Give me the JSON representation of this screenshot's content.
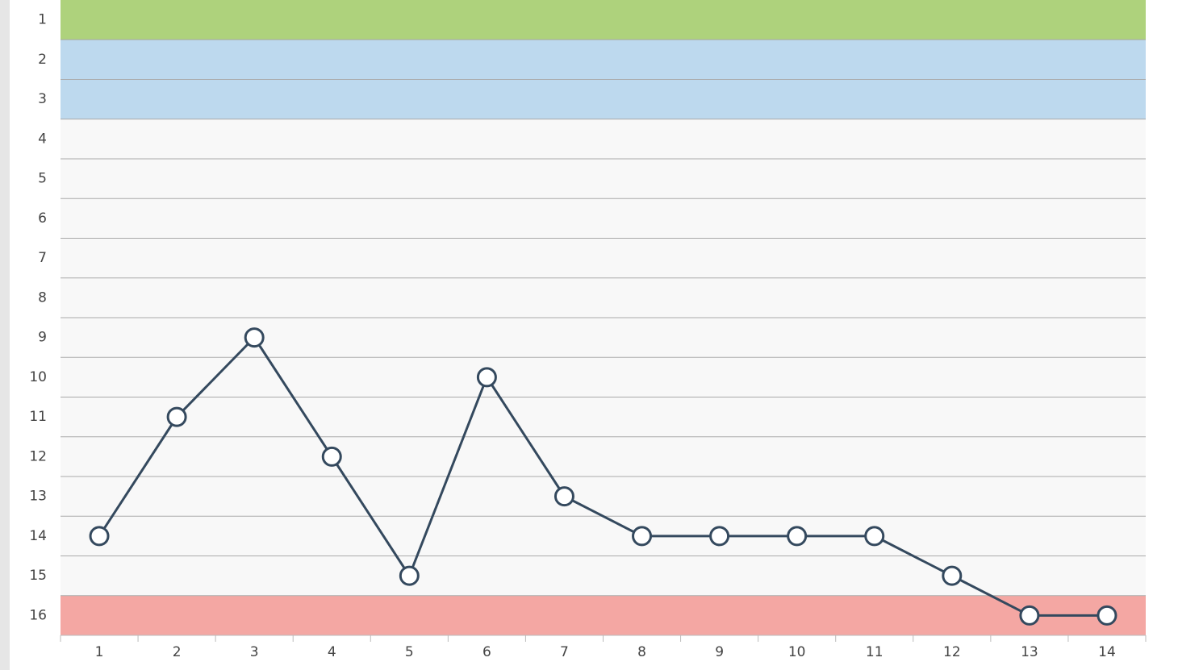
{
  "chart_data": {
    "type": "line",
    "categories": [
      "1",
      "2",
      "3",
      "4",
      "5",
      "6",
      "7",
      "8",
      "9",
      "10",
      "11",
      "12",
      "13",
      "14"
    ],
    "values": [
      14,
      11,
      9,
      12,
      15,
      10,
      13,
      14,
      14,
      14,
      14,
      15,
      16,
      16
    ],
    "color": "#34495e",
    "ylim": [
      16.5,
      0.5
    ],
    "yticks": [
      1,
      2,
      3,
      4,
      5,
      6,
      7,
      8,
      9,
      10,
      11,
      12,
      13,
      14,
      15,
      16
    ],
    "grid": true,
    "zones": [
      {
        "from": 1,
        "to": 1,
        "color": "#aed27c"
      },
      {
        "from": 2,
        "to": 3,
        "color": "#bdd9ee"
      },
      {
        "from": 16,
        "to": 16,
        "color": "#f4a7a3"
      }
    ]
  }
}
